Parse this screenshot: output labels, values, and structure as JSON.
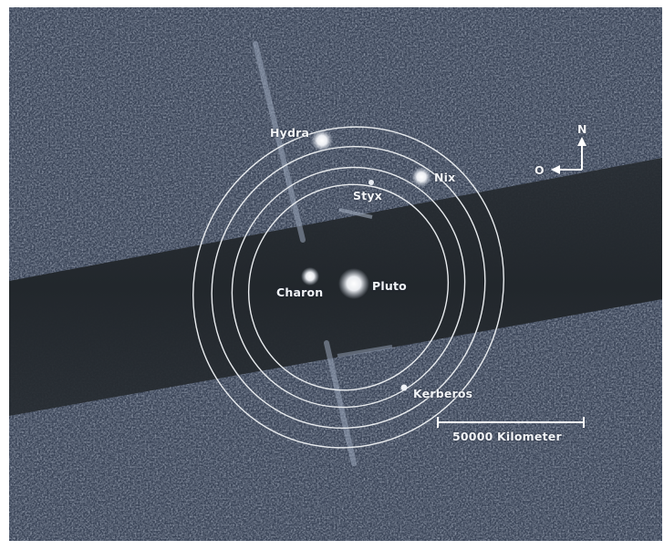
{
  "image": {
    "subject": "Pluto system moons with orbits",
    "bodies": [
      {
        "key": "pluto",
        "label": "Pluto"
      },
      {
        "key": "charon",
        "label": "Charon"
      },
      {
        "key": "nix",
        "label": "Nix"
      },
      {
        "key": "styx",
        "label": "Styx"
      },
      {
        "key": "hydra",
        "label": "Hydra"
      },
      {
        "key": "kerberos",
        "label": "Kerberos"
      }
    ],
    "compass": {
      "north": "N",
      "east": "O"
    },
    "scale_bar": {
      "label": "50000 Kilometer"
    },
    "colors": {
      "background": "#3b4658",
      "band": "#262b30",
      "orbit": "#e9ecef",
      "label": "#f2f4f7"
    }
  }
}
